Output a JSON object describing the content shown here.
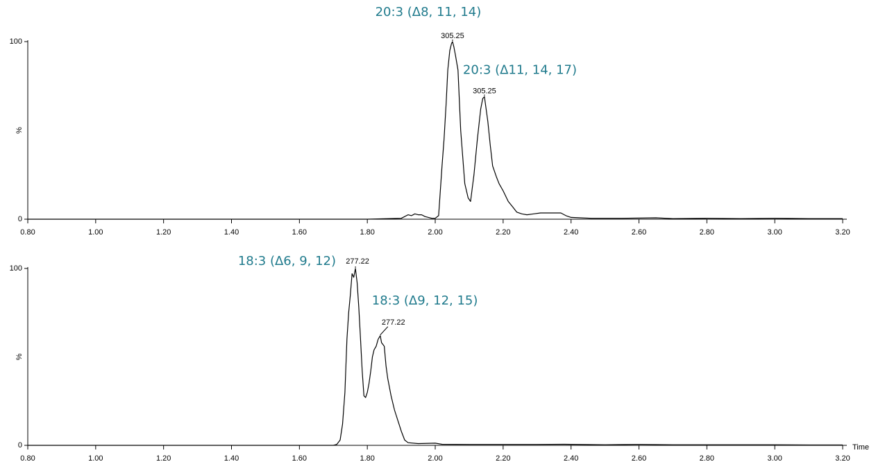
{
  "chart_data": [
    {
      "type": "line",
      "color": "#000000",
      "ylabel": "%",
      "x": [
        0.8,
        1.0,
        1.2,
        1.4,
        1.6,
        1.8,
        1.9,
        1.91,
        1.92,
        1.93,
        1.94,
        1.95,
        1.96,
        1.97,
        1.98,
        1.99,
        2.0,
        2.01,
        2.02,
        2.026,
        2.032,
        2.037,
        2.043,
        2.048,
        2.051,
        2.055,
        2.06,
        2.067,
        2.075,
        2.087,
        2.097,
        2.104,
        2.114,
        2.124,
        2.134,
        2.14,
        2.145,
        2.155,
        2.162,
        2.169,
        2.18,
        2.188,
        2.2,
        2.215,
        2.228,
        2.24,
        2.255,
        2.27,
        2.29,
        2.31,
        2.34,
        2.37,
        2.385,
        2.4,
        2.46,
        2.55,
        2.65,
        2.7,
        2.8,
        2.9,
        3.0,
        3.1,
        3.2
      ],
      "values": [
        0,
        0,
        0,
        0,
        0,
        0,
        0.5,
        1.5,
        2.5,
        2,
        3,
        2.5,
        2.5,
        1.5,
        1,
        0.5,
        0.5,
        2,
        30,
        45,
        65,
        84,
        95,
        99,
        100,
        97,
        92,
        84,
        50,
        20,
        12,
        10,
        25,
        45,
        62,
        68,
        69,
        55,
        42,
        30,
        24,
        20,
        16,
        10,
        7,
        4,
        3,
        2.5,
        3,
        3.5,
        3.5,
        3.5,
        2,
        1,
        0.5,
        0.5,
        0.8,
        0.3,
        0.5,
        0.3,
        0.5,
        0.3,
        0.3
      ],
      "xlim": [
        0.8,
        3.2
      ],
      "ylim": [
        0,
        100
      ],
      "xticks": [
        {
          "value": 0.8,
          "label": "0.80"
        },
        {
          "value": 1.0,
          "label": "1.00"
        },
        {
          "value": 1.2,
          "label": "1.20"
        },
        {
          "value": 1.4,
          "label": "1.40"
        },
        {
          "value": 1.6,
          "label": "1.60"
        },
        {
          "value": 1.8,
          "label": "1.80"
        },
        {
          "value": 2.0,
          "label": "2.00"
        },
        {
          "value": 2.2,
          "label": "2.20"
        },
        {
          "value": 2.4,
          "label": "2.40"
        },
        {
          "value": 2.6,
          "label": "2.60"
        },
        {
          "value": 2.8,
          "label": "2.80"
        },
        {
          "value": 3.0,
          "label": "3.00"
        },
        {
          "value": 3.2,
          "label": "3.20"
        }
      ],
      "yticks": [
        0,
        100
      ],
      "annotations": [
        {
          "label": "20:3 (Δ8, 11, 14)",
          "text": "305.25",
          "x": 2.051,
          "y": 100
        },
        {
          "label": "20:3 (Δ11, 14, 17)",
          "text": "305.25",
          "x": 2.145,
          "y": 69
        }
      ]
    },
    {
      "type": "line",
      "color": "#000000",
      "ylabel": "%",
      "xlabel": "Time",
      "x": [
        0.8,
        1.0,
        1.2,
        1.4,
        1.6,
        1.7,
        1.71,
        1.72,
        1.727,
        1.734,
        1.74,
        1.745,
        1.75,
        1.755,
        1.76,
        1.765,
        1.77,
        1.775,
        1.78,
        1.785,
        1.79,
        1.795,
        1.8,
        1.805,
        1.81,
        1.815,
        1.82,
        1.826,
        1.832,
        1.838,
        1.842,
        1.846,
        1.85,
        1.855,
        1.86,
        1.87,
        1.88,
        1.89,
        1.9,
        1.91,
        1.92,
        1.95,
        2.0,
        2.02,
        2.1,
        2.2,
        2.3,
        2.38,
        2.5,
        2.6,
        2.7,
        2.8,
        2.9,
        3.0,
        3.1,
        3.2
      ],
      "values": [
        0,
        0,
        0,
        0,
        0,
        0,
        0.5,
        3,
        12,
        30,
        60,
        75,
        85,
        97,
        95,
        100,
        92,
        78,
        60,
        42,
        28,
        27,
        30,
        35,
        42,
        50,
        54,
        56,
        60,
        62,
        58,
        57,
        56,
        45,
        38,
        28,
        20,
        14,
        8,
        3,
        1.5,
        1,
        1.2,
        0.6,
        0.5,
        0.5,
        0.5,
        0.6,
        0.3,
        0.5,
        0.3,
        0.3,
        0.3,
        0.3,
        0.2,
        0.2
      ],
      "xlim": [
        0.8,
        3.2
      ],
      "ylim": [
        0,
        100
      ],
      "xticks": [
        {
          "value": 0.8,
          "label": "0.80"
        },
        {
          "value": 1.0,
          "label": "1.00"
        },
        {
          "value": 1.2,
          "label": "1.20"
        },
        {
          "value": 1.4,
          "label": "1.40"
        },
        {
          "value": 1.6,
          "label": "1.60"
        },
        {
          "value": 1.8,
          "label": "1.80"
        },
        {
          "value": 2.0,
          "label": "2.00"
        },
        {
          "value": 2.2,
          "label": "2.20"
        },
        {
          "value": 2.4,
          "label": "2.40"
        },
        {
          "value": 2.6,
          "label": "2.60"
        },
        {
          "value": 2.8,
          "label": "2.80"
        },
        {
          "value": 3.0,
          "label": "3.00"
        },
        {
          "value": 3.2,
          "label": "3.20"
        }
      ],
      "yticks": [
        0,
        100
      ],
      "annotations": [
        {
          "label": "18:3 (Δ6, 9, 12)",
          "text": "277.22",
          "x": 1.765,
          "y": 100
        },
        {
          "label": "18:3 (Δ9, 12, 15)",
          "text": "277.22",
          "x": 1.838,
          "y": 62
        }
      ]
    }
  ]
}
